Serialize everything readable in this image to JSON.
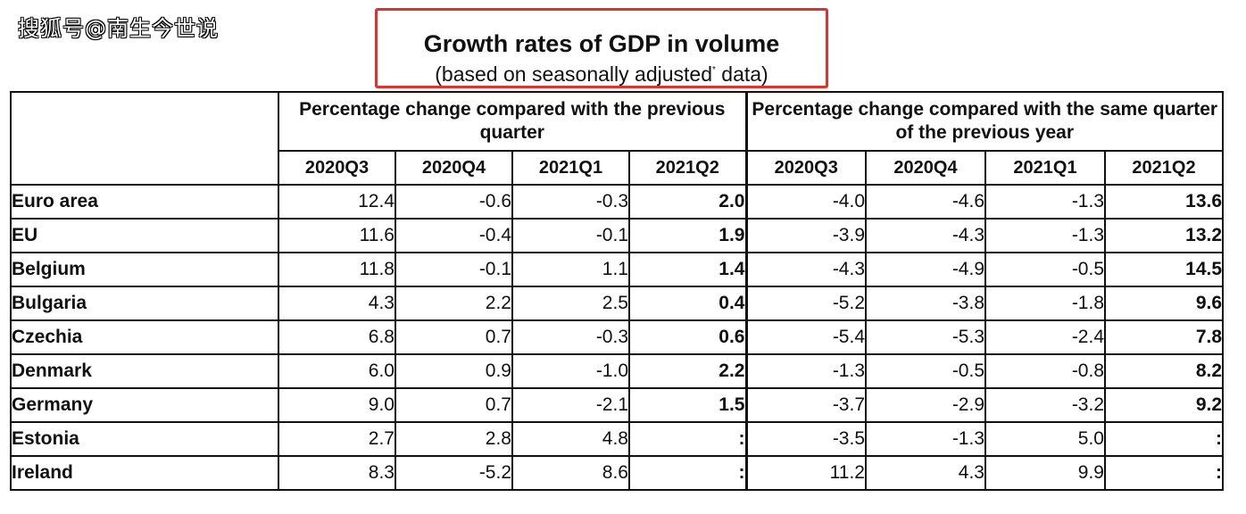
{
  "watermark": "搜狐号@南生今世说",
  "title": "Growth rates of GDP in volume",
  "subtitle_pre": "(based on seasonally adjusted",
  "subtitle_sup": "*",
  "subtitle_post": " data)",
  "headers": {
    "group1": "Percentage change compared with the previous quarter",
    "group2": "Percentage change compared with the same quarter of the previous year",
    "quarters": [
      "2020Q3",
      "2020Q4",
      "2021Q1",
      "2021Q2",
      "2020Q3",
      "2020Q4",
      "2021Q1",
      "2021Q2"
    ]
  },
  "rows": [
    {
      "country": "Euro area",
      "v": [
        "12.4",
        "-0.6",
        "-0.3",
        "2.0",
        "-4.0",
        "-4.6",
        "-1.3",
        "13.6"
      ]
    },
    {
      "country": "EU",
      "v": [
        "11.6",
        "-0.4",
        "-0.1",
        "1.9",
        "-3.9",
        "-4.3",
        "-1.3",
        "13.2"
      ]
    },
    {
      "country": "Belgium",
      "v": [
        "11.8",
        "-0.1",
        "1.1",
        "1.4",
        "-4.3",
        "-4.9",
        "-0.5",
        "14.5"
      ]
    },
    {
      "country": "Bulgaria",
      "v": [
        "4.3",
        "2.2",
        "2.5",
        "0.4",
        "-5.2",
        "-3.8",
        "-1.8",
        "9.6"
      ]
    },
    {
      "country": "Czechia",
      "v": [
        "6.8",
        "0.7",
        "-0.3",
        "0.6",
        "-5.4",
        "-5.3",
        "-2.4",
        "7.8"
      ]
    },
    {
      "country": "Denmark",
      "v": [
        "6.0",
        "0.9",
        "-1.0",
        "2.2",
        "-1.3",
        "-0.5",
        "-0.8",
        "8.2"
      ]
    },
    {
      "country": "Germany",
      "v": [
        "9.0",
        "0.7",
        "-2.1",
        "1.5",
        "-3.7",
        "-2.9",
        "-3.2",
        "9.2"
      ]
    },
    {
      "country": "Estonia",
      "v": [
        "2.7",
        "2.8",
        "4.8",
        ":",
        "-3.5",
        "-1.3",
        "5.0",
        ":"
      ]
    },
    {
      "country": "Ireland",
      "v": [
        "8.3",
        "-5.2",
        "8.6",
        ":",
        "11.2",
        "4.3",
        "9.9",
        ":"
      ]
    }
  ],
  "colors": {
    "title_border": "#e0312f",
    "grid": "#111111"
  }
}
